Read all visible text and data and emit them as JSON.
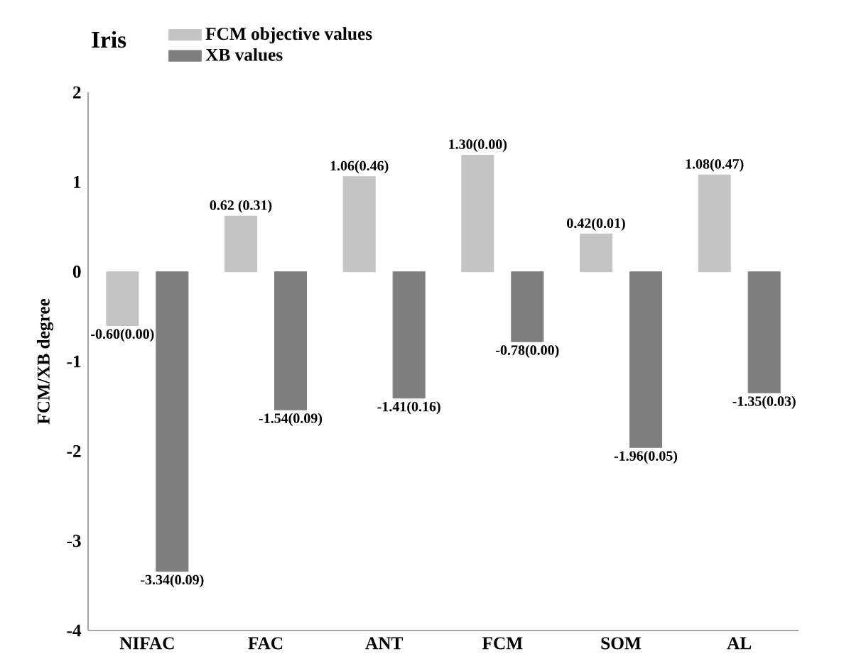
{
  "chart_data": {
    "type": "bar",
    "title": "Iris",
    "ylabel": "FCM/XB degree",
    "categories": [
      "NIFAC",
      "FAC",
      "ANT",
      "FCM",
      "SOM",
      "AL"
    ],
    "series": [
      {
        "name": "FCM objective values",
        "color": "#c4c4c4",
        "values": [
          -0.6,
          0.62,
          1.06,
          1.3,
          0.42,
          1.08
        ],
        "value_labels": [
          "-0.60(0.00)",
          "0.62 (0.31)",
          "1.06(0.46)",
          "1.30(0.00)",
          "0.42(0.01)",
          "1.08(0.47)"
        ]
      },
      {
        "name": "XB values",
        "color": "#7f7f7f",
        "values": [
          -3.34,
          -1.54,
          -1.41,
          -0.78,
          -1.96,
          -1.35
        ],
        "value_labels": [
          "-3.34(0.09)",
          "-1.54(0.09)",
          "-1.41(0.16)",
          "-0.78(0.00)",
          "-1.96(0.05)",
          "-1.35(0.03)"
        ]
      }
    ],
    "ylim": [
      -4,
      2
    ],
    "yticks": [
      -4,
      -3,
      -2,
      -1,
      0,
      1,
      2
    ],
    "legend": "top left"
  }
}
